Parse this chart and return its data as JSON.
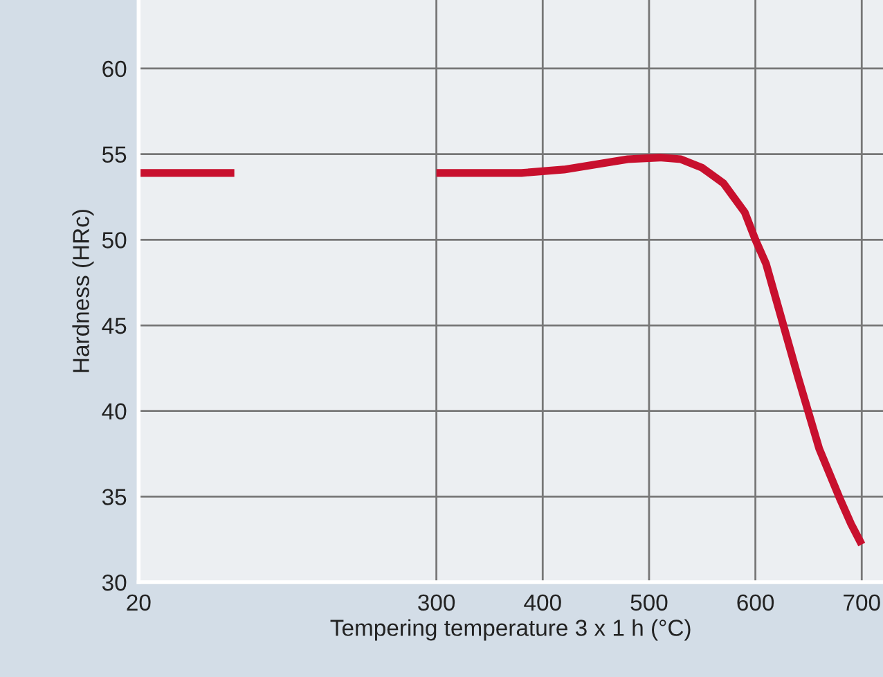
{
  "chart_data": {
    "type": "line",
    "xlabel": "Tempering temperature 3 x 1 h (°C)",
    "ylabel": "Hardness (HRc)",
    "x": [
      20,
      110,
      200,
      300,
      350,
      380,
      420,
      450,
      480,
      510,
      530,
      550,
      570,
      590,
      600,
      610,
      620,
      640,
      660,
      680,
      690,
      700
    ],
    "series": [
      {
        "color": "#c8102e",
        "values": [
          53.9,
          53.9,
          null,
          53.9,
          53.9,
          53.9,
          54.1,
          54.4,
          54.7,
          54.8,
          54.7,
          54.2,
          53.3,
          51.6,
          50.0,
          48.6,
          46.4,
          42.0,
          37.8,
          34.8,
          33.4,
          32.2
        ]
      }
    ],
    "xlim": [
      20,
      720
    ],
    "xticks": [
      20,
      300,
      400,
      500,
      600,
      700
    ],
    "ylim": [
      30,
      64
    ],
    "yticks": [
      30,
      35,
      40,
      45,
      50,
      55,
      60
    ],
    "grid": true,
    "marker": "none",
    "line_style": "solid",
    "legend": false
  }
}
